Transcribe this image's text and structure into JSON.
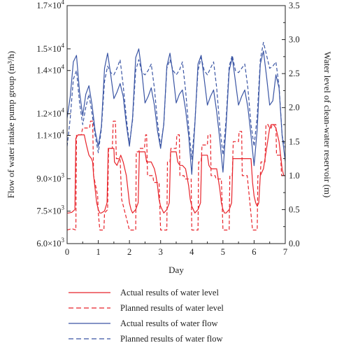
{
  "chart_data": {
    "type": "line",
    "title": "",
    "xlabel": "Day",
    "ylabel_left": "Flow of water intake pump group (m³/h)",
    "ylabel_right": "Water level of clean-water reservoir (m)",
    "xlim": [
      0,
      7
    ],
    "ylim_left": [
      6000,
      17000
    ],
    "ylim_right": [
      0.0,
      3.5
    ],
    "x_ticks": [
      "0",
      "1",
      "2",
      "3",
      "4",
      "5",
      "6",
      "7"
    ],
    "y_left_ticks": [
      {
        "value": 6000,
        "mantissa": "6.0",
        "exp": "3"
      },
      {
        "value": 7500,
        "mantissa": "7.5",
        "exp": "3"
      },
      {
        "value": 9000,
        "mantissa": "9.0",
        "exp": "3"
      },
      {
        "value": 11000,
        "mantissa": "1.1",
        "exp": "4"
      },
      {
        "value": 12000,
        "mantissa": "1.2",
        "exp": "4"
      },
      {
        "value": 14000,
        "mantissa": "1.4",
        "exp": "4"
      },
      {
        "value": 15000,
        "mantissa": "1.5",
        "exp": "4"
      },
      {
        "value": 17000,
        "mantissa": "1.7",
        "exp": "4"
      }
    ],
    "y_right_ticks": [
      "0.0",
      "0.5",
      "1.0",
      "1.5",
      "2.0",
      "2.5",
      "3.0",
      "3.5"
    ],
    "grid": false,
    "legend_position": "bottom",
    "series": [
      {
        "name": "Actual results of water level",
        "axis": "right",
        "color": "#e8232a",
        "dash": "solid",
        "x": [
          0,
          0.05,
          0.15,
          0.25,
          0.28,
          0.35,
          0.45,
          0.55,
          0.62,
          0.7,
          0.78,
          0.82,
          0.85,
          0.9,
          0.95,
          1.0,
          1.05,
          1.1,
          1.2,
          1.28,
          1.32,
          1.4,
          1.5,
          1.52,
          1.6,
          1.68,
          1.72,
          1.8,
          1.9,
          1.95,
          2.0,
          2.05,
          2.1,
          2.2,
          2.28,
          2.32,
          2.4,
          2.5,
          2.55,
          2.62,
          2.7,
          2.8,
          2.85,
          2.9,
          2.95,
          3.0,
          3.05,
          3.1,
          3.2,
          3.28,
          3.32,
          3.4,
          3.5,
          3.55,
          3.62,
          3.7,
          3.8,
          3.9,
          3.95,
          4.0,
          4.05,
          4.1,
          4.2,
          4.28,
          4.32,
          4.4,
          4.5,
          4.55,
          4.62,
          4.7,
          4.8,
          4.9,
          4.95,
          5.0,
          5.05,
          5.1,
          5.2,
          5.28,
          5.32,
          5.4,
          5.5,
          5.55,
          5.62,
          5.7,
          5.8,
          5.9,
          5.95,
          6.0,
          6.05,
          6.1,
          6.15,
          6.2,
          6.3,
          6.4,
          6.5,
          6.55,
          6.62,
          6.7,
          6.8,
          6.85,
          6.9,
          6.95,
          7.0
        ],
        "values": [
          0.45,
          0.45,
          0.46,
          0.5,
          1.55,
          1.6,
          1.6,
          1.6,
          1.45,
          1.3,
          1.25,
          1.2,
          1.0,
          0.8,
          0.6,
          0.5,
          0.45,
          0.45,
          0.48,
          0.6,
          1.4,
          1.4,
          1.4,
          1.2,
          1.15,
          1.25,
          1.3,
          1.2,
          1.0,
          0.8,
          0.6,
          0.5,
          0.45,
          0.5,
          0.6,
          1.35,
          1.35,
          1.35,
          1.2,
          1.2,
          1.2,
          1.1,
          1.0,
          0.85,
          0.65,
          0.55,
          0.5,
          0.45,
          0.5,
          0.6,
          1.35,
          1.35,
          1.35,
          1.2,
          1.15,
          1.15,
          1.1,
          0.85,
          0.65,
          0.55,
          0.5,
          0.45,
          0.5,
          0.6,
          1.3,
          1.3,
          1.3,
          1.15,
          1.1,
          1.1,
          1.1,
          0.8,
          0.6,
          0.5,
          0.45,
          0.45,
          0.5,
          0.6,
          1.25,
          1.25,
          1.25,
          1.25,
          1.25,
          1.25,
          1.25,
          1.25,
          0.9,
          0.7,
          0.6,
          0.55,
          0.6,
          1.0,
          1.1,
          1.4,
          1.7,
          1.75,
          1.75,
          1.7,
          1.5,
          1.3,
          1.1,
          1.0,
          1.0
        ]
      },
      {
        "name": "Planned results of water level",
        "axis": "right",
        "color": "#e8232a",
        "dash": "dashed",
        "x": [
          0,
          0.15,
          0.28,
          0.3,
          0.45,
          0.5,
          0.72,
          0.75,
          0.82,
          0.85,
          0.98,
          1.0,
          1.05,
          1.18,
          1.2,
          1.3,
          1.33,
          1.45,
          1.48,
          1.55,
          1.58,
          1.7,
          1.72,
          1.75,
          2.0,
          2.05,
          2.2,
          2.22,
          2.3,
          2.33,
          2.48,
          2.52,
          2.55,
          2.58,
          2.75,
          2.78,
          2.95,
          3.0,
          3.05,
          3.2,
          3.22,
          3.3,
          3.33,
          3.5,
          3.52,
          3.6,
          3.62,
          3.75,
          3.78,
          3.98,
          4.0,
          4.05,
          4.2,
          4.22,
          4.3,
          4.33,
          4.5,
          4.52,
          4.6,
          4.62,
          4.75,
          4.78,
          4.95,
          5.0,
          5.05,
          5.2,
          5.22,
          5.3,
          5.33,
          5.5,
          5.52,
          5.6,
          5.62,
          5.75,
          5.78,
          5.95,
          6.0,
          6.05,
          6.1,
          6.12,
          6.2,
          6.22,
          6.35,
          6.38,
          6.45,
          6.48,
          6.55,
          6.58,
          6.7,
          6.72,
          6.85,
          6.88,
          7.0
        ],
        "values": [
          0.2,
          0.22,
          0.2,
          1.6,
          1.6,
          1.7,
          1.7,
          1.8,
          1.8,
          1.0,
          0.7,
          0.45,
          0.2,
          0.2,
          0.45,
          0.5,
          1.4,
          1.4,
          1.8,
          1.8,
          1.25,
          1.25,
          1.0,
          0.65,
          0.2,
          0.2,
          0.2,
          1.35,
          1.35,
          1.4,
          1.4,
          1.6,
          1.6,
          1.0,
          1.0,
          0.9,
          0.9,
          0.2,
          0.2,
          0.2,
          1.2,
          1.2,
          1.4,
          1.4,
          1.6,
          1.6,
          1.0,
          1.0,
          0.95,
          0.95,
          0.2,
          0.2,
          0.2,
          1.2,
          1.2,
          1.45,
          1.45,
          1.6,
          1.6,
          1.0,
          1.0,
          0.95,
          0.95,
          0.2,
          0.2,
          0.2,
          1.0,
          1.0,
          1.5,
          1.5,
          1.65,
          1.65,
          1.0,
          1.0,
          1.0,
          0.2,
          0.2,
          0.2,
          0.2,
          1.0,
          1.0,
          1.2,
          1.2,
          1.75,
          1.75,
          1.7,
          1.7,
          1.75,
          1.75,
          1.3,
          1.3,
          1.0,
          1.0
        ]
      },
      {
        "name": "Actual results of water flow",
        "axis": "left",
        "color": "#3a55a4",
        "dash": "solid",
        "x": [
          0,
          0.1,
          0.2,
          0.3,
          0.4,
          0.5,
          0.6,
          0.7,
          0.8,
          0.9,
          1.0,
          1.1,
          1.2,
          1.3,
          1.4,
          1.5,
          1.6,
          1.7,
          1.8,
          1.9,
          2.0,
          2.1,
          2.2,
          2.3,
          2.4,
          2.5,
          2.6,
          2.7,
          2.8,
          2.9,
          3.0,
          3.1,
          3.2,
          3.3,
          3.4,
          3.5,
          3.6,
          3.7,
          3.8,
          3.9,
          4.0,
          4.1,
          4.2,
          4.3,
          4.4,
          4.5,
          4.6,
          4.7,
          4.8,
          4.9,
          5.0,
          5.1,
          5.2,
          5.3,
          5.4,
          5.5,
          5.6,
          5.7,
          5.8,
          5.9,
          6.0,
          6.1,
          6.2,
          6.3,
          6.4,
          6.5,
          6.6,
          6.7,
          6.8,
          6.9,
          7.0
        ],
        "values": [
          11800,
          12800,
          14400,
          14700,
          13000,
          11900,
          12900,
          13300,
          12400,
          11200,
          10500,
          11400,
          14100,
          14800,
          13800,
          12700,
          13000,
          13400,
          12800,
          11500,
          10500,
          11800,
          14600,
          15000,
          13900,
          12500,
          12800,
          13200,
          12400,
          11200,
          10400,
          11500,
          14200,
          14800,
          13800,
          12500,
          12900,
          13100,
          12200,
          11000,
          9200,
          11500,
          14300,
          14700,
          13600,
          12400,
          12800,
          13100,
          12100,
          10800,
          9300,
          11400,
          14000,
          14600,
          13500,
          12400,
          12800,
          13100,
          12300,
          11000,
          9600,
          11300,
          14300,
          14900,
          13700,
          12400,
          12600,
          13800,
          13200,
          11000,
          9800
        ]
      },
      {
        "name": "Planned results of water flow",
        "axis": "left",
        "color": "#3a55a4",
        "dash": "dashed",
        "x": [
          0,
          0.1,
          0.2,
          0.3,
          0.4,
          0.5,
          0.6,
          0.7,
          0.8,
          0.9,
          1.0,
          1.1,
          1.2,
          1.3,
          1.4,
          1.5,
          1.6,
          1.7,
          1.8,
          1.9,
          2.0,
          2.1,
          2.2,
          2.3,
          2.4,
          2.5,
          2.6,
          2.7,
          2.8,
          2.9,
          3.0,
          3.1,
          3.2,
          3.3,
          3.4,
          3.5,
          3.6,
          3.7,
          3.8,
          3.9,
          4.0,
          4.1,
          4.2,
          4.3,
          4.4,
          4.5,
          4.6,
          4.7,
          4.8,
          4.9,
          5.0,
          5.1,
          5.2,
          5.3,
          5.4,
          5.5,
          5.6,
          5.7,
          5.8,
          5.9,
          6.0,
          6.1,
          6.2,
          6.3,
          6.4,
          6.5,
          6.6,
          6.7,
          6.8,
          6.9,
          7.0
        ],
        "values": [
          10500,
          11800,
          13600,
          14000,
          12500,
          11500,
          12300,
          12900,
          12000,
          11000,
          10200,
          11300,
          13500,
          14200,
          13900,
          13800,
          14100,
          14500,
          13300,
          11800,
          10600,
          11700,
          14000,
          14500,
          13900,
          13800,
          14000,
          14300,
          13200,
          11600,
          10500,
          11500,
          14100,
          14500,
          14000,
          13800,
          14000,
          14400,
          13100,
          11400,
          9900,
          11600,
          14000,
          14600,
          14000,
          13800,
          14100,
          14400,
          13200,
          11400,
          10100,
          11700,
          14200,
          14700,
          14000,
          13900,
          14100,
          14300,
          13200,
          11500,
          10500,
          11900,
          14500,
          15300,
          14700,
          14100,
          14200,
          14400,
          13300,
          11000,
          10400
        ]
      }
    ]
  }
}
